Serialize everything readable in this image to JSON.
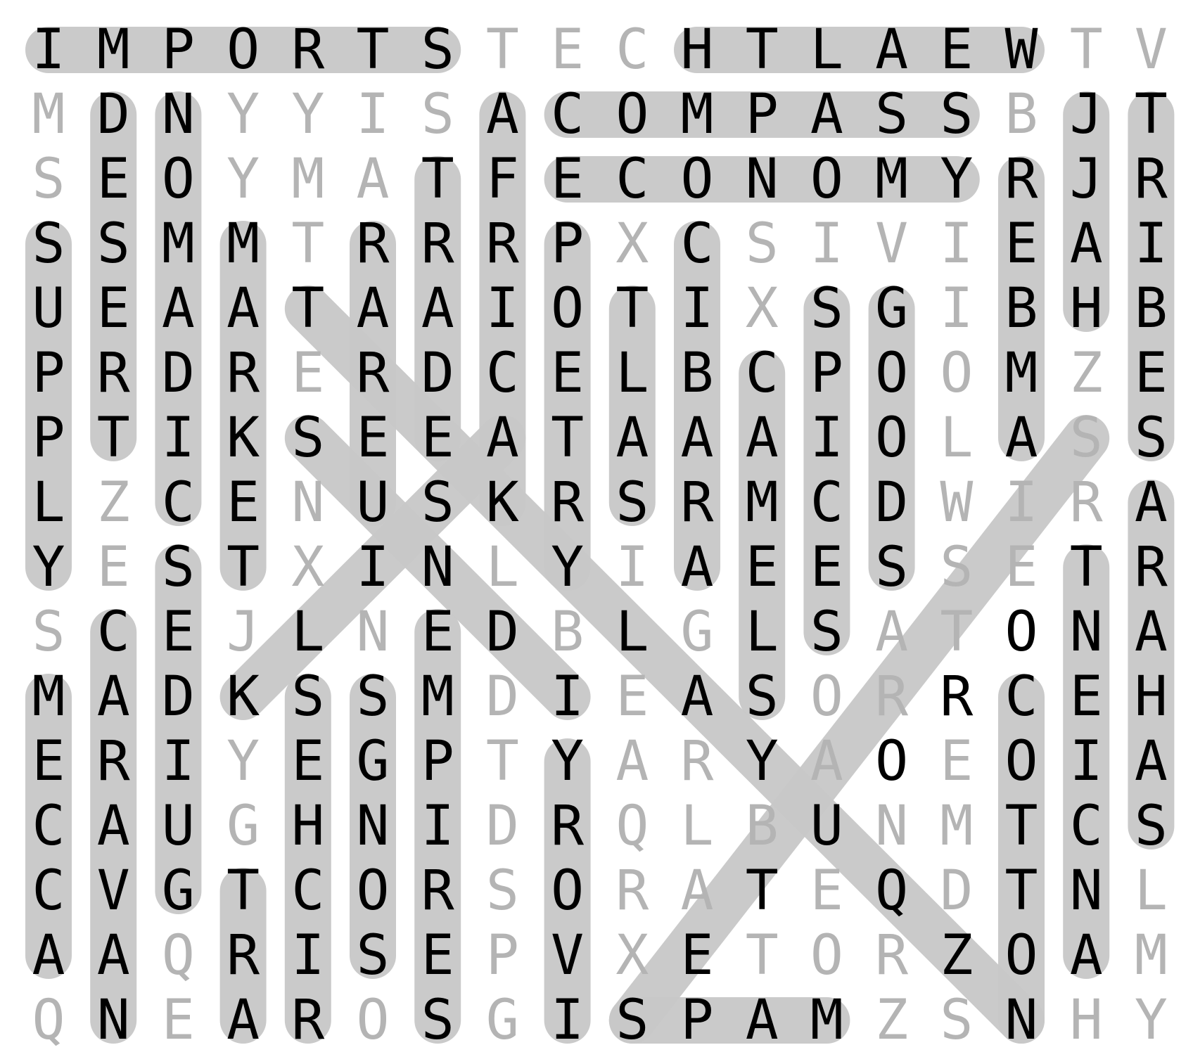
{
  "grid": [
    "IMPORTSTECHTLAEWTV",
    "MDNYYISACOMPASSBJT",
    "SEOYMATFECONOMYRJR",
    "SSMMTRRRPXCSIVIEAI",
    "UEAATAAIOTIXSGIBHB",
    "PRDRERDCELBCPOOMZE",
    "PTIKSEEATAAAIOLASS",
    "LZCENUSKRSRMCDWIRA",
    "YESTXINLYIAEESSETR",
    "SCEJLNEDBLGLSATONA",
    "MADKSSMDIEASORRCEH",
    "ERIYEGPTYARYAOEOIA",
    "CAUGHNIDRQLBUNMTCS",
    "CVGTCORSORATEQDTNL",
    "AAQRISEPVXETORZOAM",
    "QNEAROSGISPAMZSNHY"
  ],
  "words": [
    {
      "from": [
        0,
        0
      ],
      "to": [
        0,
        6
      ]
    },
    {
      "from": [
        0,
        10
      ],
      "to": [
        0,
        15
      ]
    },
    {
      "from": [
        1,
        8
      ],
      "to": [
        1,
        14
      ]
    },
    {
      "from": [
        2,
        8
      ],
      "to": [
        2,
        14
      ]
    },
    {
      "from": [
        3,
        0
      ],
      "to": [
        8,
        0
      ]
    },
    {
      "from": [
        10,
        0
      ],
      "to": [
        14,
        0
      ]
    },
    {
      "from": [
        1,
        1
      ],
      "to": [
        6,
        1
      ]
    },
    {
      "from": [
        9,
        1
      ],
      "to": [
        15,
        1
      ]
    },
    {
      "from": [
        1,
        2
      ],
      "to": [
        7,
        2
      ]
    },
    {
      "from": [
        8,
        2
      ],
      "to": [
        13,
        2
      ]
    },
    {
      "from": [
        3,
        3
      ],
      "to": [
        8,
        3
      ]
    },
    {
      "from": [
        13,
        3
      ],
      "to": [
        15,
        3
      ]
    },
    {
      "from": [
        10,
        4
      ],
      "to": [
        15,
        4
      ]
    },
    {
      "from": [
        3,
        5
      ],
      "to": [
        7,
        5
      ]
    },
    {
      "from": [
        10,
        5
      ],
      "to": [
        14,
        5
      ]
    },
    {
      "from": [
        2,
        6
      ],
      "to": [
        6,
        6
      ]
    },
    {
      "from": [
        9,
        6
      ],
      "to": [
        15,
        6
      ]
    },
    {
      "from": [
        1,
        7
      ],
      "to": [
        7,
        7
      ]
    },
    {
      "from": [
        3,
        8
      ],
      "to": [
        8,
        8
      ]
    },
    {
      "from": [
        11,
        8
      ],
      "to": [
        15,
        8
      ]
    },
    {
      "from": [
        4,
        9
      ],
      "to": [
        7,
        9
      ]
    },
    {
      "from": [
        3,
        10
      ],
      "to": [
        8,
        10
      ]
    },
    {
      "from": [
        5,
        11
      ],
      "to": [
        10,
        11
      ]
    },
    {
      "from": [
        4,
        12
      ],
      "to": [
        9,
        12
      ]
    },
    {
      "from": [
        4,
        13
      ],
      "to": [
        8,
        13
      ]
    },
    {
      "from": [
        2,
        15
      ],
      "to": [
        6,
        15
      ]
    },
    {
      "from": [
        10,
        15
      ],
      "to": [
        15,
        15
      ]
    },
    {
      "from": [
        1,
        16
      ],
      "to": [
        4,
        16
      ]
    },
    {
      "from": [
        8,
        16
      ],
      "to": [
        14,
        16
      ]
    },
    {
      "from": [
        1,
        17
      ],
      "to": [
        6,
        17
      ]
    },
    {
      "from": [
        7,
        17
      ],
      "to": [
        12,
        17
      ]
    },
    {
      "from": [
        15,
        9
      ],
      "to": [
        15,
        12
      ]
    },
    {
      "from": [
        4,
        4
      ],
      "to": [
        15,
        15
      ]
    },
    {
      "from": [
        6,
        4
      ],
      "to": [
        10,
        8
      ]
    },
    {
      "from": [
        10,
        3
      ],
      "to": [
        6,
        7
      ]
    },
    {
      "from": [
        15,
        9
      ],
      "to": [
        6,
        16
      ]
    }
  ],
  "colors": {
    "highlight": "#c8c8c8",
    "found_letter": "#000000",
    "filler_letter": "#b4b4b4",
    "background": "#ffffff"
  }
}
